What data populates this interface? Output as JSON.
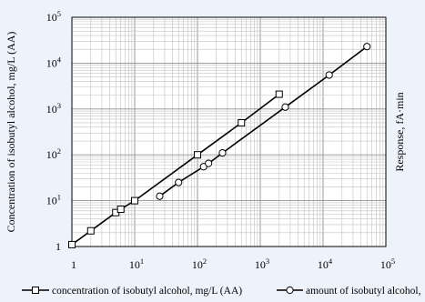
{
  "chart_data": {
    "type": "scatter",
    "title": "",
    "xlabel": "",
    "ylabel": "Concentration of isobutyl alcohol, mg/L (AA)",
    "y2label": "Response, fA·min",
    "xscale": "log",
    "yscale": "log",
    "xlim": [
      1,
      100000
    ],
    "ylim": [
      1,
      100000
    ],
    "grid": true,
    "legend_position": "bottom",
    "x_tick_labels": [
      {
        "base": "1",
        "exp": ""
      },
      {
        "base": "10",
        "exp": "1"
      },
      {
        "base": "10",
        "exp": "2"
      },
      {
        "base": "10",
        "exp": "3"
      },
      {
        "base": "10",
        "exp": "4"
      },
      {
        "base": "10",
        "exp": "5"
      }
    ],
    "y_tick_labels": [
      {
        "base": "1",
        "exp": ""
      },
      {
        "base": "10",
        "exp": "1"
      },
      {
        "base": "10",
        "exp": "2"
      },
      {
        "base": "10",
        "exp": "3"
      },
      {
        "base": "10",
        "exp": "4"
      },
      {
        "base": "10",
        "exp": "5"
      }
    ],
    "series": [
      {
        "name": "concentration of isobutyl alcohol, mg/L (AA)",
        "marker": "square",
        "color": "#000000",
        "x": [
          1,
          2,
          5,
          6,
          10,
          100,
          500,
          2000
        ],
        "y": [
          1.1,
          2.2,
          5.5,
          6.5,
          10,
          100,
          500,
          2100
        ]
      },
      {
        "name": "amount of isobutyl alcohol,",
        "marker": "circle",
        "color": "#000000",
        "x": [
          25,
          50,
          125,
          150,
          250,
          2500,
          12500,
          50000
        ],
        "y": [
          12.5,
          25,
          55,
          65,
          110,
          1100,
          5500,
          23000
        ]
      }
    ]
  }
}
